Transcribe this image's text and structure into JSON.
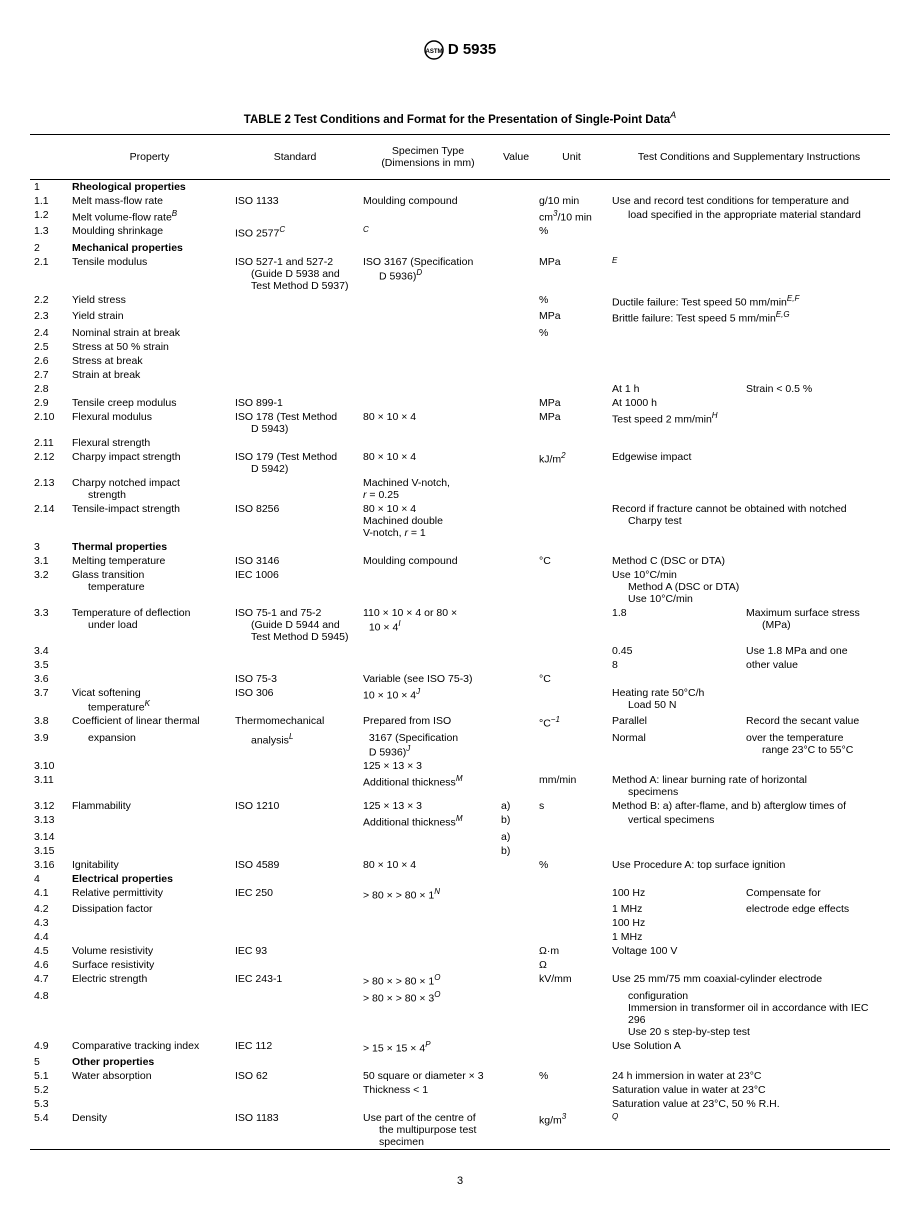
{
  "header": {
    "designation": "D 5935"
  },
  "title": "TABLE 2  Test Conditions and Format for the Presentation of Single-Point Data",
  "title_sup": "A",
  "columns": [
    "",
    "Property",
    "Standard",
    "Specimen Type\n(Dimensions in mm)",
    "Value",
    "Unit",
    "Test Conditions and Supplementary Instructions"
  ],
  "page_number": "3",
  "rows": [
    {
      "n": "1",
      "prop": "Rheological properties",
      "bold": true
    },
    {
      "n": "1.1",
      "prop": "Melt mass-flow rate",
      "std": "ISO 1133",
      "spec": "Moulding compound",
      "unit": "g/10 min",
      "cond": "Use and record test conditions for temperature and"
    },
    {
      "n": "1.2",
      "prop": "Melt volume-flow rate",
      "prop_sup": "B",
      "unit_html": "cm<sup>3</sup>/10 min",
      "cond": "load specified in the appropriate material standard",
      "cond_indent": true
    },
    {
      "n": "1.3",
      "prop": "Moulding shrinkage",
      "std": "ISO 2577",
      "std_sup": "C",
      "spec_sup": "C",
      "unit": "%"
    },
    {
      "n": "2",
      "prop": "Mechanical properties",
      "bold": true
    },
    {
      "n": "2.1",
      "prop": "Tensile modulus",
      "std": "ISO 527-1 and 527-2\n(Guide D 5938 and\nTest Method D 5937)",
      "spec": "ISO 3167 (Specification\nD 5936)",
      "spec_sup": "D",
      "unit": "MPa",
      "cond_sup": "E"
    },
    {
      "n": "2.2",
      "prop": "Yield stress",
      "unit": "%",
      "cond_html": "Ductile failure: Test speed 50 mm/min<sup>E,F</sup>"
    },
    {
      "n": "2.3",
      "prop": "Yield strain",
      "unit": "MPa",
      "cond_html": "Brittle failure: Test speed 5 mm/min<sup>E,G</sup>"
    },
    {
      "n": "2.4",
      "prop": "Nominal strain at break",
      "unit": "%"
    },
    {
      "n": "2.5",
      "prop": "Stress at 50 % strain"
    },
    {
      "n": "2.6",
      "prop": "Stress at break"
    },
    {
      "n": "2.7",
      "prop": "Strain at break"
    },
    {
      "n": "2.8",
      "cond_split": [
        "At 1 h",
        "Strain < 0.5 %"
      ]
    },
    {
      "n": "2.9",
      "prop": "Tensile creep modulus",
      "std": "ISO 899-1",
      "unit": "MPa",
      "cond": "At 1000 h"
    },
    {
      "n": "2.10",
      "prop": "Flexural modulus",
      "std": "ISO 178 (Test Method\nD 5943)",
      "spec": "80 × 10 × 4",
      "unit": "MPa",
      "cond_html": "Test speed 2 mm/min<sup>H</sup>"
    },
    {
      "n": "2.11",
      "prop": "Flexural strength"
    },
    {
      "n": "2.12",
      "prop": "Charpy impact strength",
      "std": "ISO 179 (Test Method\nD 5942)",
      "spec": "80 × 10 × 4",
      "unit_html": "kJ/m<sup>2</sup>",
      "cond": "Edgewise impact"
    },
    {
      "n": "2.13",
      "prop": "Charpy notched impact\nstrength",
      "spec_html": "Machined V-notch,<br><i>r</i> = 0.25"
    },
    {
      "n": "2.14",
      "prop": "Tensile-impact strength",
      "std": "ISO 8256",
      "spec_html": "80 × 10 × 4<br>Machined double<br>V-notch, <i>r</i> = 1",
      "cond": "Record if fracture cannot be obtained with notched\nCharpy test"
    },
    {
      "n": "3",
      "prop": "Thermal properties",
      "bold": true
    },
    {
      "n": "3.1",
      "prop": "Melting temperature",
      "std": "ISO 3146",
      "spec": "Moulding compound",
      "unit": "°C",
      "cond": "Method C (DSC or DTA)"
    },
    {
      "n": "3.2",
      "prop": "Glass transition\ntemperature",
      "std": "IEC 1006",
      "cond": "Use 10°C/min\nMethod A (DSC or DTA)\nUse 10°C/min"
    },
    {
      "n": "3.3",
      "prop": "Temperature of deflection\nunder load",
      "std": "ISO 75-1 and 75-2\n(Guide D 5944 and\nTest Method D 5945)",
      "spec_html": "110 × 10 × 4 or 80 ×<br>&nbsp;&nbsp;10 × 4<sup>I</sup>",
      "cond_split": [
        "1.8",
        "Maximum surface stress\n(MPa)"
      ]
    },
    {
      "n": "3.4",
      "cond_split": [
        "0.45",
        "Use 1.8 MPa and one"
      ]
    },
    {
      "n": "3.5",
      "cond_split": [
        "8",
        "other value"
      ]
    },
    {
      "n": "3.6",
      "std": "ISO 75-3",
      "spec": "Variable (see ISO 75-3)",
      "unit": "°C"
    },
    {
      "n": "3.7",
      "prop": "Vicat softening\ntemperature",
      "prop_sup": "K",
      "std": "ISO 306",
      "spec_html": "10 × 10 × 4<sup>J</sup>",
      "cond": "Heating rate 50°C/h\nLoad 50 N"
    },
    {
      "n": "3.8",
      "prop": "Coefficient of linear thermal",
      "std": "Thermomechanical",
      "spec": "Prepared from ISO",
      "unit_html": "°C<sup>−1</sup>",
      "cond_split": [
        "Parallel",
        "Record the secant value"
      ]
    },
    {
      "n": "3.9",
      "prop": "expansion",
      "prop_indent": true,
      "std": "analysis",
      "std_sup": "L",
      "std_indent": true,
      "spec_html": "&nbsp;&nbsp;3167 (Specification<br>&nbsp;&nbsp;D 5936)<sup>J</sup>",
      "cond_split": [
        "Normal",
        "over the temperature\nrange 23°C to 55°C"
      ]
    },
    {
      "n": "3.10",
      "spec": "125 × 13 × 3"
    },
    {
      "n": "3.11",
      "spec_html": "Additional thickness<sup>M</sup>",
      "unit": "mm/min",
      "cond": "Method A: linear burning rate of horizontal\nspecimens"
    },
    {
      "n": "3.12",
      "prop": "Flammability",
      "std": "ISO 1210",
      "spec": "125 × 13 × 3",
      "val": "a)",
      "unit": "s",
      "cond": "Method B: a) after-flame, and b) afterglow times of"
    },
    {
      "n": "3.13",
      "spec_html": "Additional thickness<sup>M</sup>",
      "val": "b)",
      "cond": "vertical specimens",
      "cond_indent": true
    },
    {
      "n": "3.14",
      "val": "a)"
    },
    {
      "n": "3.15",
      "val": "b)"
    },
    {
      "n": "3.16",
      "prop": "Ignitability",
      "std": "ISO 4589",
      "spec": "80 × 10 × 4",
      "unit": "%",
      "cond": "Use Procedure A: top surface ignition"
    },
    {
      "n": "4",
      "prop": "Electrical properties",
      "bold": true
    },
    {
      "n": "4.1",
      "prop": "Relative permittivity",
      "std": "IEC 250",
      "spec_html": "> 80 × > 80 × 1<sup>N</sup>",
      "cond_split": [
        "100 Hz",
        "Compensate for"
      ]
    },
    {
      "n": "4.2",
      "prop": "Dissipation factor",
      "cond_split": [
        "1 MHz",
        "electrode edge effects"
      ]
    },
    {
      "n": "4.3",
      "cond": "100 Hz"
    },
    {
      "n": "4.4",
      "cond": "1 MHz"
    },
    {
      "n": "4.5",
      "prop": "Volume resistivity",
      "std": "IEC 93",
      "unit": "Ω·m",
      "cond": "Voltage 100 V"
    },
    {
      "n": "4.6",
      "prop": "Surface resistivity",
      "unit": "Ω"
    },
    {
      "n": "4.7",
      "prop": "Electric strength",
      "std": "IEC 243-1",
      "spec_html": "> 80 × > 80 × 1<sup>O</sup>",
      "unit": "kV/mm",
      "cond": "Use 25 mm/75 mm coaxial-cylinder electrode"
    },
    {
      "n": "4.8",
      "spec_html": "> 80 × > 80 × 3<sup>O</sup>",
      "cond": "configuration\nImmersion in transformer oil in accordance with IEC\n296\nUse 20 s step-by-step test",
      "cond_indent": true
    },
    {
      "n": "4.9",
      "prop": "Comparative tracking index",
      "std": "IEC 112",
      "spec_html": "> 15 × 15 × 4<sup>P</sup>",
      "cond": "Use Solution A"
    },
    {
      "n": "5",
      "prop": "Other properties",
      "bold": true
    },
    {
      "n": "5.1",
      "prop": "Water absorption",
      "std": "ISO 62",
      "spec": "50 square or diameter × 3",
      "unit": "%",
      "cond": "24 h immersion in water at 23°C"
    },
    {
      "n": "5.2",
      "spec": "Thickness < 1",
      "cond": "Saturation value in water at 23°C"
    },
    {
      "n": "5.3",
      "cond": "Saturation value at 23°C, 50 % R.H."
    },
    {
      "n": "5.4",
      "prop": "Density",
      "std": "ISO 1183",
      "spec": "Use part of the centre of\nthe multipurpose test\nspecimen",
      "unit_html": "kg/m<sup>3</sup>",
      "cond_sup": "Q"
    }
  ]
}
